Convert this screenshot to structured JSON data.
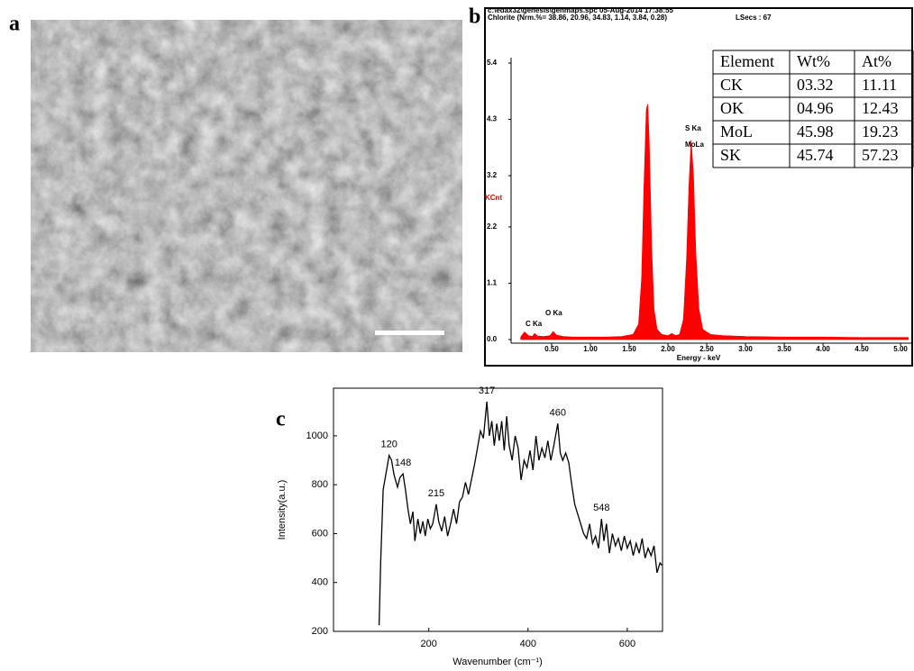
{
  "panel_labels": [
    "a",
    "b",
    "c"
  ],
  "chart_data": [
    {
      "type": "area",
      "header": [
        "c:\\edax32\\genesis\\genmaps.spc  05-Aug-2014 17:38:55",
        "Chlorite (Nrm.%= 38.86, 20.96, 34.83, 1.14, 3.84, 0.28)"
      ],
      "lsecs": "LSecs : 67",
      "y_label": "KCnt",
      "x_label": "Energy - keV",
      "color": "#ff0000",
      "xlim": [
        0,
        5.15
      ],
      "ylim": [
        0,
        5.4
      ],
      "xticks": [
        {
          "value": 0.5,
          "label": "0.50"
        },
        {
          "value": 1,
          "label": "1.00"
        },
        {
          "value": 1.5,
          "label": "1.50"
        },
        {
          "value": 2,
          "label": "2.00"
        },
        {
          "value": 2.5,
          "label": "2.50"
        },
        {
          "value": 3,
          "label": "3.00"
        },
        {
          "value": 3.5,
          "label": "3.50"
        },
        {
          "value": 4,
          "label": "4.00"
        },
        {
          "value": 4.5,
          "label": "4.50"
        },
        {
          "value": 5,
          "label": "5.00"
        }
      ],
      "yticks": [
        {
          "value": 0,
          "label": "0.0"
        },
        1.1,
        2.2,
        3.2,
        4.3,
        5.4
      ],
      "x": [
        0.1,
        0.15,
        0.2,
        0.25,
        0.28,
        0.32,
        0.4,
        0.48,
        0.52,
        0.56,
        0.65,
        0.8,
        1.0,
        1.2,
        1.4,
        1.55,
        1.62,
        1.66,
        1.69,
        1.72,
        1.74,
        1.76,
        1.79,
        1.82,
        1.86,
        1.92,
        2.0,
        2.05,
        2.1,
        2.15,
        2.2,
        2.24,
        2.27,
        2.3,
        2.33,
        2.36,
        2.4,
        2.45,
        2.55,
        2.7,
        3.0,
        3.5,
        4.0,
        4.5,
        5.1
      ],
      "values": [
        0.05,
        0.15,
        0.08,
        0.06,
        0.12,
        0.07,
        0.06,
        0.08,
        0.16,
        0.09,
        0.06,
        0.05,
        0.05,
        0.05,
        0.06,
        0.1,
        0.3,
        1.2,
        3.0,
        4.5,
        4.6,
        3.8,
        1.8,
        0.6,
        0.2,
        0.1,
        0.08,
        0.12,
        0.08,
        0.1,
        0.4,
        1.6,
        3.0,
        3.9,
        3.2,
        1.7,
        0.6,
        0.2,
        0.1,
        0.08,
        0.06,
        0.05,
        0.05,
        0.04,
        0.04
      ],
      "annotations": [
        "C Ka",
        "O Ka",
        "S Ka",
        "MoLa"
      ],
      "table": {
        "header": [
          "Element",
          "Wt%",
          "At%"
        ],
        "rows": [
          [
            "CK",
            "03.32",
            "11.11"
          ],
          [
            "OK",
            "04.96",
            "12.43"
          ],
          [
            "MoL",
            "45.98",
            "19.23"
          ],
          [
            "SK",
            "45.74",
            "57.23"
          ]
        ]
      }
    },
    {
      "type": "line",
      "x_label": "Wavenumber (cm⁻¹)",
      "y_label": "Intensity(a.u.)",
      "color": "#000000",
      "xlim": [
        8,
        671
      ],
      "ylim": [
        200,
        1195
      ],
      "xticks": [
        200,
        400,
        600
      ],
      "yticks": [
        200,
        400,
        600,
        800,
        1000
      ],
      "x": [
        100,
        103,
        108,
        115,
        120,
        125,
        130,
        137,
        142,
        148,
        153,
        158,
        163,
        168,
        172,
        178,
        183,
        188,
        193,
        198,
        203,
        208,
        215,
        220,
        226,
        232,
        238,
        244,
        250,
        256,
        262,
        268,
        274,
        280,
        286,
        292,
        298,
        304,
        310,
        317,
        322,
        327,
        332,
        337,
        342,
        347,
        352,
        357,
        362,
        368,
        374,
        380,
        386,
        392,
        398,
        404,
        410,
        416,
        422,
        428,
        434,
        440,
        446,
        452,
        460,
        465,
        470,
        476,
        482,
        488,
        494,
        500,
        506,
        512,
        518,
        524,
        530,
        536,
        542,
        548,
        553,
        558,
        564,
        570,
        576,
        582,
        588,
        594,
        600,
        606,
        612,
        618,
        624,
        630,
        636,
        642,
        648,
        654,
        660,
        666,
        670
      ],
      "values": [
        225,
        480,
        780,
        860,
        920,
        900,
        840,
        790,
        830,
        845,
        780,
        700,
        640,
        690,
        570,
        660,
        600,
        650,
        590,
        660,
        620,
        640,
        720,
        650,
        610,
        670,
        590,
        640,
        700,
        640,
        730,
        750,
        810,
        760,
        820,
        880,
        950,
        1020,
        990,
        1140,
        1000,
        1060,
        960,
        1050,
        980,
        1060,
        940,
        1080,
        960,
        900,
        1000,
        950,
        820,
        900,
        870,
        940,
        860,
        1000,
        900,
        950,
        910,
        980,
        900,
        960,
        1050,
        930,
        900,
        930,
        890,
        800,
        720,
        680,
        640,
        600,
        580,
        640,
        560,
        590,
        540,
        660,
        570,
        640,
        520,
        600,
        550,
        580,
        530,
        590,
        540,
        570,
        510,
        560,
        520,
        580,
        500,
        540,
        510,
        550,
        440,
        480,
        470
      ],
      "peak_labels": [
        120,
        148,
        215,
        317,
        460,
        548
      ]
    }
  ]
}
